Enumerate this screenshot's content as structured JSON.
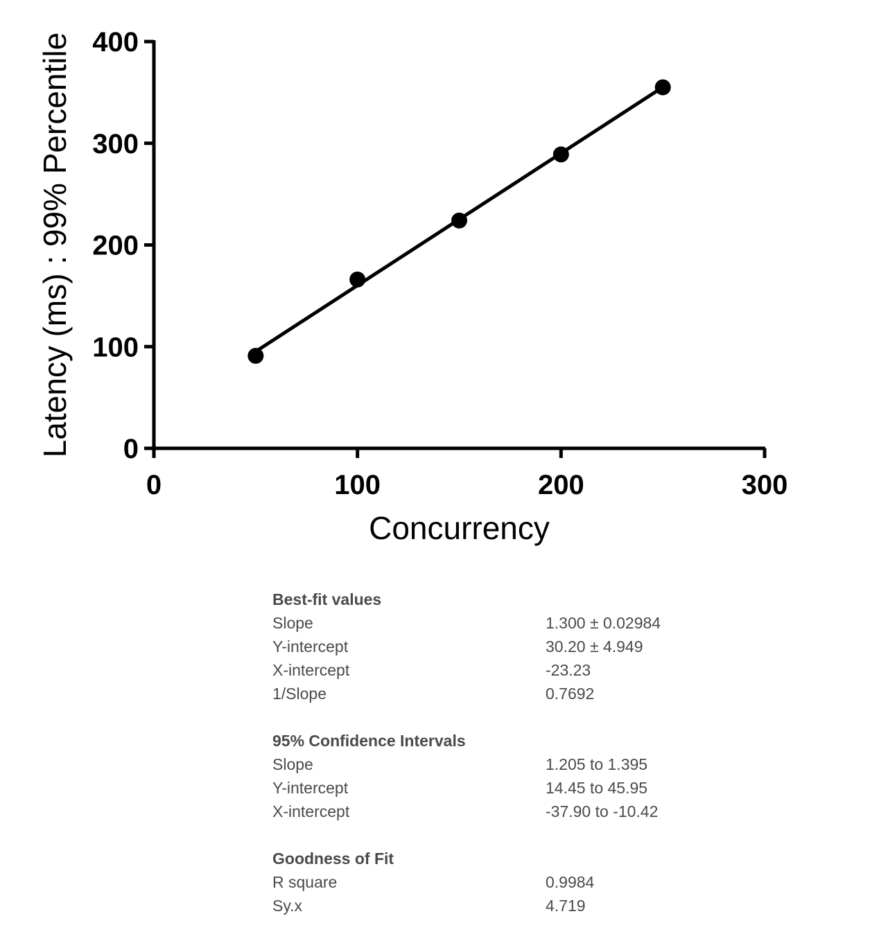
{
  "chart_data": {
    "type": "scatter",
    "xlabel": "Concurrency",
    "ylabel": "Latency (ms) : 99% Percentile",
    "xlim": [
      0,
      300
    ],
    "ylim": [
      0,
      400
    ],
    "xticks": [
      "0",
      "100",
      "200",
      "300"
    ],
    "yticks": [
      "0",
      "100",
      "200",
      "300",
      "400"
    ],
    "grid": false,
    "series": [
      {
        "x": [
          50,
          100,
          150,
          200,
          250
        ],
        "y": [
          91,
          166,
          224,
          289,
          355
        ]
      }
    ],
    "fit_line": {
      "slope": 1.3,
      "intercept": 30.2,
      "x_range": [
        50,
        250
      ]
    }
  },
  "colors": {
    "axis": "#000000",
    "marker": "#000000",
    "text": "#4a4a4a"
  },
  "stats": [
    {
      "title": "Best-fit values",
      "rows": [
        {
          "label": "Slope",
          "value": "1.300 ± 0.02984"
        },
        {
          "label": "Y-intercept",
          "value": "30.20 ± 4.949"
        },
        {
          "label": "X-intercept",
          "value": "-23.23"
        },
        {
          "label": "1/Slope",
          "value": "0.7692"
        }
      ]
    },
    {
      "title": "95% Confidence Intervals",
      "rows": [
        {
          "label": "Slope",
          "value": "1.205 to 1.395"
        },
        {
          "label": "Y-intercept",
          "value": "14.45 to 45.95"
        },
        {
          "label": "X-intercept",
          "value": "-37.90 to -10.42"
        }
      ]
    },
    {
      "title": "Goodness of Fit",
      "rows": [
        {
          "label": "R square",
          "value": "0.9984"
        },
        {
          "label": "Sy.x",
          "value": "4.719"
        }
      ]
    }
  ]
}
